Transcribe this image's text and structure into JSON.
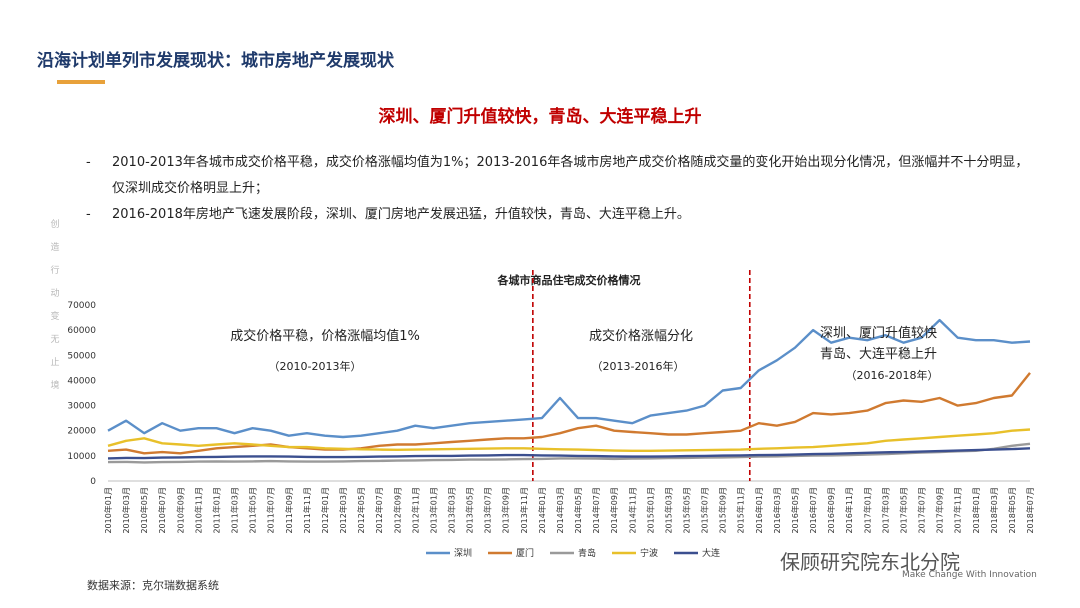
{
  "header": {
    "title": "沿海计划单列市发展现状：城市房地产发展现状"
  },
  "headline": "深圳、厦门升值较快，青岛、大连平稳上升",
  "bullets": [
    {
      "dash": "-",
      "text": "2010-2013年各城市成交价格平稳，成交价格涨幅均值为1%；2013-2016年各城市房地产成交价格随成交量的变化开始出现分化情况，但涨幅并不十分明显，仅深圳成交价格明显上升；"
    },
    {
      "dash": "-",
      "text": "2016-2018年房地产飞速发展阶段，深圳、厦门房地产发展迅猛，升值较快，青岛、大连平稳上升。"
    }
  ],
  "side_decoration": [
    "创",
    "造",
    "行",
    "动",
    "变",
    "无",
    "止",
    "境"
  ],
  "colors": {
    "title": "#1f3a6b",
    "accent": "#e8a13a",
    "headline": "#c00000",
    "divider": "#c00000"
  },
  "chart_data": {
    "type": "line",
    "title": "各城市商品住宅成交价格情况",
    "ylim": [
      0,
      70000
    ],
    "yticks": [
      0,
      10000,
      20000,
      30000,
      40000,
      50000,
      60000,
      70000
    ],
    "x": [
      "2010年01月",
      "2010年03月",
      "2010年05月",
      "2010年07月",
      "2010年09月",
      "2010年11月",
      "2011年01月",
      "2011年03月",
      "2011年05月",
      "2011年07月",
      "2011年09月",
      "2011年11月",
      "2012年01月",
      "2012年03月",
      "2012年05月",
      "2012年07月",
      "2012年09月",
      "2012年11月",
      "2013年01月",
      "2013年03月",
      "2013年05月",
      "2013年07月",
      "2013年09月",
      "2013年11月",
      "2014年01月",
      "2014年03月",
      "2014年05月",
      "2014年07月",
      "2014年09月",
      "2014年11月",
      "2015年01月",
      "2015年03月",
      "2015年05月",
      "2015年07月",
      "2015年09月",
      "2015年11月",
      "2016年01月",
      "2016年03月",
      "2016年05月",
      "2016年07月",
      "2016年09月",
      "2016年11月",
      "2017年01月",
      "2017年03月",
      "2017年05月",
      "2017年07月",
      "2017年09月",
      "2017年11月",
      "2018年01月",
      "2018年03月",
      "2018年05月",
      "2018年07月"
    ],
    "series": [
      {
        "name": "深圳",
        "color": "#5b8fc9",
        "values": [
          20000,
          24000,
          19000,
          23000,
          20000,
          21000,
          21000,
          19000,
          21000,
          20000,
          18000,
          19000,
          18000,
          17500,
          18000,
          19000,
          20000,
          22000,
          21000,
          22000,
          23000,
          23500,
          24000,
          24500,
          25000,
          33000,
          25000,
          25000,
          24000,
          23000,
          26000,
          27000,
          28000,
          30000,
          36000,
          37000,
          44000,
          48000,
          53000,
          60000,
          55000,
          57000,
          56000,
          58000,
          55000,
          57000,
          64000,
          57000,
          56000,
          56000,
          55000,
          55500
        ]
      },
      {
        "name": "厦门",
        "color": "#d07a30",
        "values": [
          12000,
          12500,
          11000,
          11500,
          11000,
          12000,
          13000,
          13500,
          14000,
          14500,
          13500,
          13000,
          12500,
          12500,
          13000,
          14000,
          14500,
          14500,
          15000,
          15500,
          16000,
          16500,
          17000,
          17000,
          17500,
          19000,
          21000,
          22000,
          20000,
          19500,
          19000,
          18500,
          18500,
          19000,
          19500,
          20000,
          23000,
          22000,
          23500,
          27000,
          26500,
          27000,
          28000,
          31000,
          32000,
          31500,
          33000,
          30000,
          31000,
          33000,
          34000,
          43000
        ]
      },
      {
        "name": "青岛",
        "color": "#9a9a9a",
        "values": [
          7500,
          7600,
          7400,
          7500,
          7600,
          7700,
          7800,
          7700,
          7800,
          7900,
          7800,
          7700,
          7700,
          7800,
          7900,
          8000,
          8100,
          8200,
          8300,
          8400,
          8500,
          8500,
          8600,
          8700,
          8800,
          9000,
          9000,
          8900,
          8800,
          8900,
          9000,
          9100,
          9200,
          9300,
          9400,
          9500,
          9700,
          9800,
          10000,
          10100,
          10200,
          10300,
          10500,
          10700,
          11000,
          11300,
          11500,
          11800,
          12000,
          12800,
          14000,
          14800
        ]
      },
      {
        "name": "宁波",
        "color": "#e8c02a",
        "values": [
          14000,
          16000,
          17000,
          15000,
          14500,
          14000,
          14500,
          15000,
          14500,
          14000,
          13500,
          13500,
          13000,
          12800,
          12600,
          12500,
          12400,
          12500,
          12600,
          12700,
          12800,
          12900,
          13000,
          13000,
          12800,
          12600,
          12500,
          12300,
          12100,
          12000,
          12000,
          12100,
          12200,
          12300,
          12400,
          12500,
          12800,
          13000,
          13300,
          13500,
          14000,
          14500,
          15000,
          16000,
          16500,
          17000,
          17500,
          18000,
          18500,
          19000,
          20000,
          20500
        ]
      },
      {
        "name": "大连",
        "color": "#3b4f8f",
        "values": [
          9000,
          9200,
          9100,
          9300,
          9400,
          9500,
          9600,
          9700,
          9800,
          9800,
          9700,
          9600,
          9500,
          9500,
          9600,
          9700,
          9800,
          9900,
          10000,
          10000,
          10100,
          10200,
          10300,
          10300,
          10200,
          10100,
          10000,
          9900,
          9800,
          9700,
          9700,
          9800,
          9900,
          10000,
          10100,
          10200,
          10300,
          10400,
          10500,
          10700,
          10800,
          11000,
          11200,
          11400,
          11500,
          11700,
          11900,
          12100,
          12300,
          12500,
          12700,
          13000
        ]
      }
    ],
    "dividers_after": [
      "2013年11月",
      "2015年11月"
    ],
    "annotations": [
      {
        "line1": "成交价格平稳，价格涨幅均值1%",
        "line2": "（2010-2013年）"
      },
      {
        "line1": "成交价格涨幅分化",
        "line2": "（2013-2016年）"
      },
      {
        "line1": "深圳、厦门升值较快",
        "line1b": "青岛、大连平稳上升",
        "line2": "（2016-2018年）"
      }
    ],
    "legend_position": "bottom"
  },
  "source": "数据来源：克尔瑞数据系统",
  "brand": {
    "name": "保顾研究院东北分院",
    "slogan": "Make Change With Innovation"
  }
}
